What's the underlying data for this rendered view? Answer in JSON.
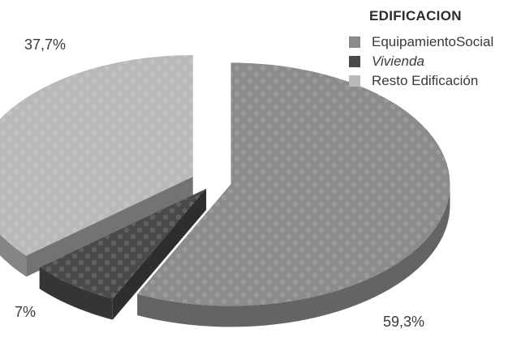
{
  "chart_data": {
    "type": "pie",
    "title": "EDIFICACION",
    "categories": [
      "EquipamientoSocial",
      "Vivienda",
      "Resto Edificación"
    ],
    "values": [
      59.3,
      7,
      37.7
    ],
    "value_labels": [
      "59,3%",
      "7%",
      "37,7%"
    ],
    "legend_placement": "top-right",
    "style": "3d-exploded",
    "colors": {
      "EquipamientoSocial": "#8b8b8b",
      "Vivienda": "#4a4a4a",
      "Resto Edificación": "#b9b9b9"
    }
  }
}
